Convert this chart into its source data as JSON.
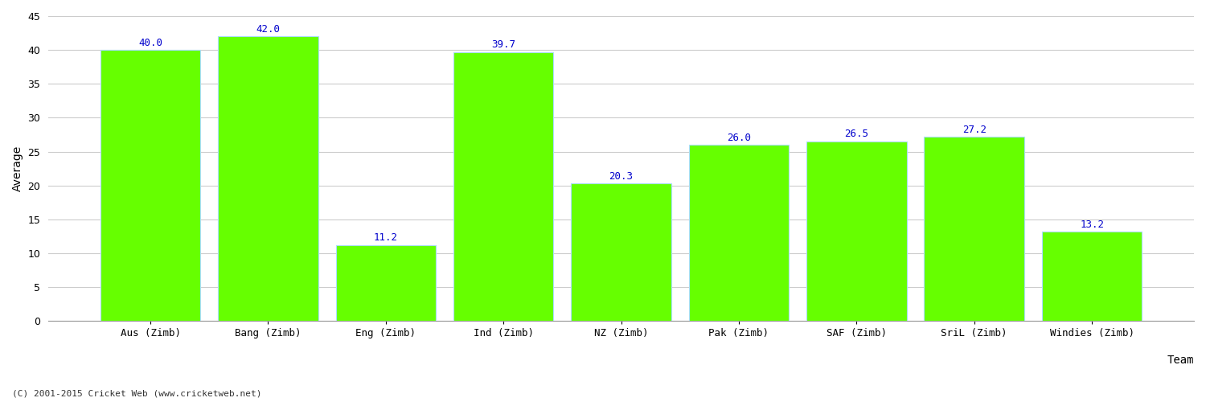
{
  "categories": [
    "Aus (Zimb)",
    "Bang (Zimb)",
    "Eng (Zimb)",
    "Ind (Zimb)",
    "NZ (Zimb)",
    "Pak (Zimb)",
    "SAF (Zimb)",
    "SriL (Zimb)",
    "Windies (Zimb)"
  ],
  "values": [
    40.0,
    42.0,
    11.2,
    39.7,
    20.3,
    26.0,
    26.5,
    27.2,
    13.2
  ],
  "bar_color": "#66ff00",
  "bar_edge_color": "#aaddff",
  "label_color": "#0000cc",
  "xlabel": "Team",
  "ylabel": "Average",
  "ylim": [
    0,
    45
  ],
  "yticks": [
    0,
    5,
    10,
    15,
    20,
    25,
    30,
    35,
    40,
    45
  ],
  "grid_color": "#cccccc",
  "background_color": "#ffffff",
  "footer": "(C) 2001-2015 Cricket Web (www.cricketweb.net)",
  "label_fontsize": 9,
  "axis_label_fontsize": 10,
  "tick_fontsize": 9,
  "bar_width": 0.85
}
